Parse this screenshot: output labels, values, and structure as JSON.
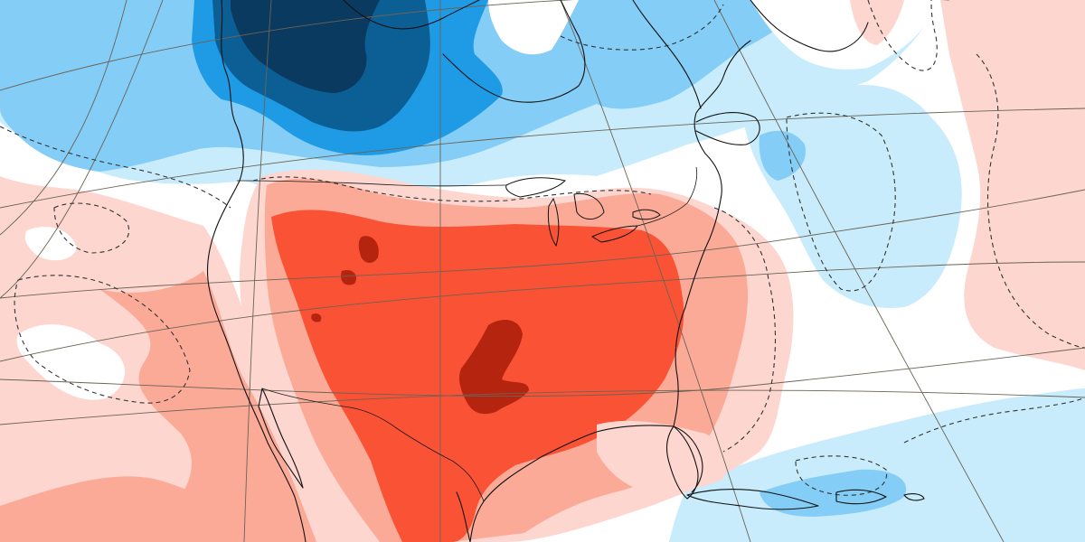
{
  "map": {
    "kind": "temperature-anomaly",
    "projection": "conic",
    "palette": {
      "deep_cold": "#0a3a5f",
      "strong_cold": "#0c5f95",
      "moderate_cold": "#1f9be6",
      "light_cold": "#83cdf6",
      "faint_cold": "#c9ecfc",
      "neutral": "#ffffff",
      "faint_warm": "#fdd6cf",
      "light_warm": "#fbaa98",
      "moderate_warm": "#fa5235",
      "strong_warm": "#b5240f",
      "graticule": "#6b6356",
      "coastline": "#111111",
      "contour": "#333333"
    },
    "regions": [
      {
        "name": "canada-west-cold-anomaly",
        "level": "deep_cold"
      },
      {
        "name": "canada-hudson-cold-anomaly",
        "level": "light_cold"
      },
      {
        "name": "atlantic-cold-anomaly",
        "level": "faint_cold"
      },
      {
        "name": "caribbean-cold-anomaly",
        "level": "faint_cold"
      },
      {
        "name": "us-heat-anomaly",
        "level": "moderate_warm"
      },
      {
        "name": "southern-plains-heat-core",
        "level": "strong_warm"
      },
      {
        "name": "rockies-heat-core",
        "level": "strong_warm"
      },
      {
        "name": "pacific-warm-anomaly",
        "level": "faint_warm"
      },
      {
        "name": "north-atlantic-warm-anomaly",
        "level": "faint_warm"
      }
    ],
    "layers": [
      "anomaly-fill",
      "coastlines",
      "national-borders",
      "graticule",
      "zero-contour"
    ]
  }
}
